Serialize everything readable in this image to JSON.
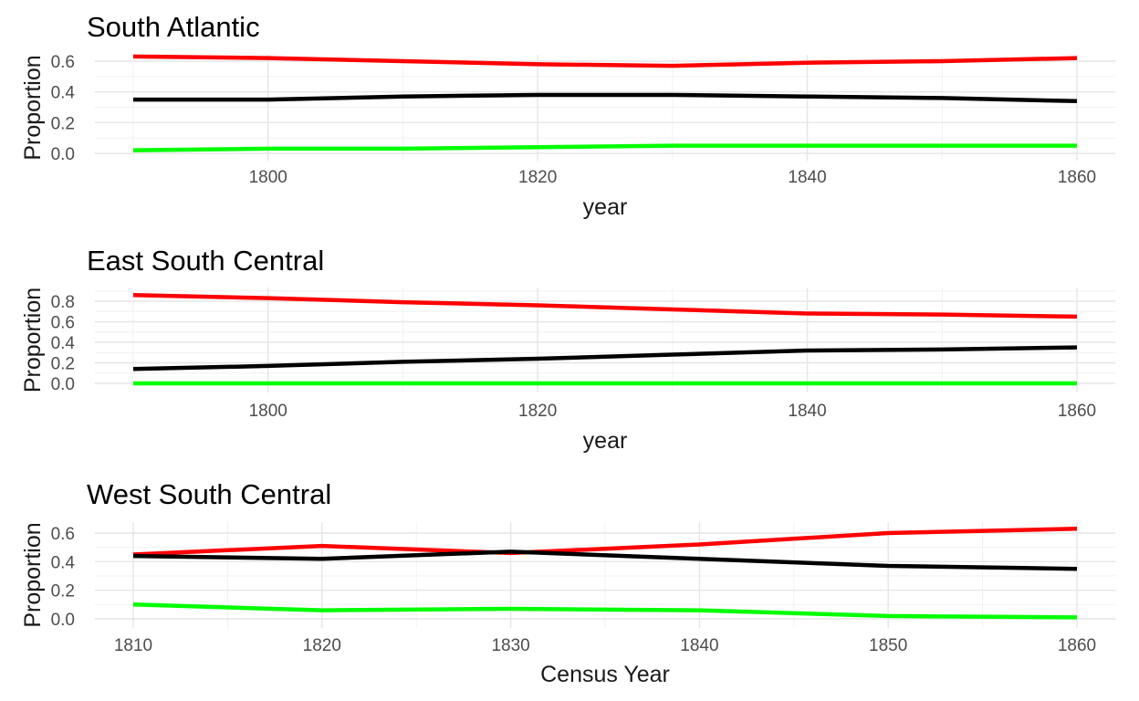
{
  "chart_data": [
    {
      "type": "line",
      "title": "South Atlantic",
      "xlabel": "year",
      "ylabel": "Proportion",
      "xlim": [
        1790,
        1860
      ],
      "ylim": [
        0,
        0.65
      ],
      "x_ticks": [
        1800,
        1820,
        1840,
        1860
      ],
      "y_ticks": [
        0.0,
        0.2,
        0.4,
        0.6
      ],
      "y_tick_labels": [
        "0.0",
        "0.2",
        "0.4",
        "0.6"
      ],
      "x_tick_labels": [
        "1800",
        "1820",
        "1840",
        "1860"
      ],
      "grid": true,
      "legend": "none",
      "series": [
        {
          "color": "#ff0000",
          "x": [
            1790,
            1800,
            1810,
            1820,
            1830,
            1840,
            1850,
            1860
          ],
          "values": [
            0.63,
            0.62,
            0.6,
            0.58,
            0.57,
            0.59,
            0.6,
            0.62
          ]
        },
        {
          "color": "#000000",
          "x": [
            1790,
            1800,
            1810,
            1820,
            1830,
            1840,
            1850,
            1860
          ],
          "values": [
            0.35,
            0.35,
            0.37,
            0.38,
            0.38,
            0.37,
            0.36,
            0.34
          ]
        },
        {
          "color": "#00ff00",
          "x": [
            1790,
            1800,
            1810,
            1820,
            1830,
            1840,
            1850,
            1860
          ],
          "values": [
            0.02,
            0.03,
            0.03,
            0.04,
            0.05,
            0.05,
            0.05,
            0.05
          ]
        }
      ]
    },
    {
      "type": "line",
      "title": "East South Central",
      "xlabel": "year",
      "ylabel": "Proportion",
      "xlim": [
        1790,
        1860
      ],
      "ylim": [
        0,
        0.87
      ],
      "x_ticks": [
        1800,
        1820,
        1840,
        1860
      ],
      "y_ticks": [
        0.0,
        0.2,
        0.4,
        0.6,
        0.8
      ],
      "y_tick_labels": [
        "0.0",
        "0.2",
        "0.4",
        "0.6",
        "0.8"
      ],
      "x_tick_labels": [
        "1800",
        "1820",
        "1840",
        "1860"
      ],
      "grid": true,
      "legend": "none",
      "series": [
        {
          "color": "#ff0000",
          "x": [
            1790,
            1800,
            1810,
            1820,
            1830,
            1840,
            1850,
            1860
          ],
          "values": [
            0.86,
            0.83,
            0.79,
            0.76,
            0.72,
            0.68,
            0.67,
            0.65
          ]
        },
        {
          "color": "#000000",
          "x": [
            1790,
            1800,
            1810,
            1820,
            1830,
            1840,
            1850,
            1860
          ],
          "values": [
            0.14,
            0.17,
            0.21,
            0.24,
            0.28,
            0.32,
            0.33,
            0.35
          ]
        },
        {
          "color": "#00ff00",
          "x": [
            1790,
            1800,
            1810,
            1820,
            1830,
            1840,
            1850,
            1860
          ],
          "values": [
            0.0,
            0.0,
            0.0,
            0.0,
            0.0,
            0.0,
            0.0,
            0.0
          ]
        }
      ]
    },
    {
      "type": "line",
      "title": "West South Central",
      "xlabel": "Census Year",
      "ylabel": "Proportion",
      "xlim": [
        1810,
        1860
      ],
      "ylim": [
        0,
        0.65
      ],
      "x_ticks": [
        1810,
        1820,
        1830,
        1840,
        1850,
        1860
      ],
      "y_ticks": [
        0.0,
        0.2,
        0.4,
        0.6
      ],
      "y_tick_labels": [
        "0.0",
        "0.2",
        "0.4",
        "0.6"
      ],
      "x_tick_labels": [
        "1810",
        "1820",
        "1830",
        "1840",
        "1850",
        "1860"
      ],
      "grid": true,
      "legend": "none",
      "series": [
        {
          "color": "#ff0000",
          "x": [
            1810,
            1820,
            1830,
            1840,
            1850,
            1860
          ],
          "values": [
            0.45,
            0.51,
            0.46,
            0.52,
            0.6,
            0.63
          ]
        },
        {
          "color": "#000000",
          "x": [
            1810,
            1820,
            1830,
            1840,
            1850,
            1860
          ],
          "values": [
            0.44,
            0.42,
            0.47,
            0.42,
            0.37,
            0.35
          ]
        },
        {
          "color": "#00ff00",
          "x": [
            1810,
            1820,
            1830,
            1840,
            1850,
            1860
          ],
          "values": [
            0.1,
            0.06,
            0.07,
            0.06,
            0.02,
            0.01
          ]
        }
      ]
    }
  ]
}
